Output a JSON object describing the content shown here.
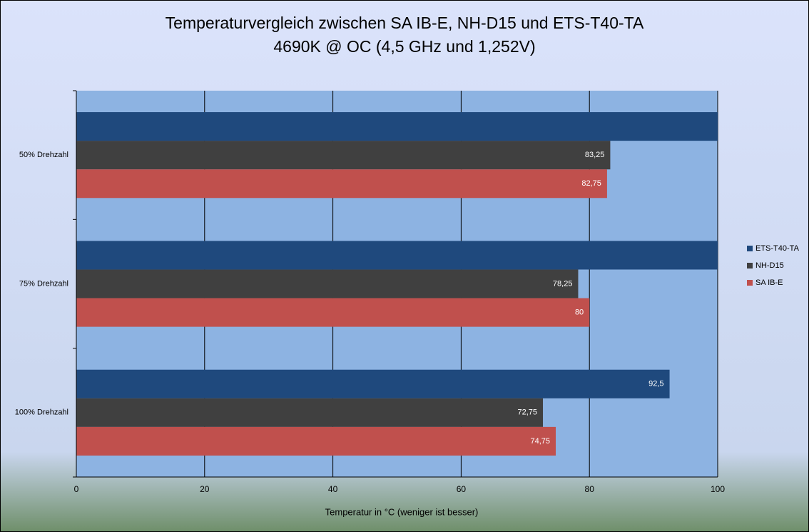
{
  "chart_data": {
    "type": "hbar",
    "title": "Temperaturvergleich zwischen SA IB-E, NH-D15 und ETS-T40-TA",
    "subtitle": "4690K @ OC (4,5 GHz und 1,252V)",
    "x_label": "Temperatur in °C (weniger ist besser)",
    "categories": [
      "50% Drehzahl",
      "75% Drehzahl",
      "100% Drehzahl"
    ],
    "series": [
      {
        "name": "ETS-T40-TA",
        "color": "#1f497d",
        "values": [
          100,
          100,
          92.5
        ],
        "value_labels": [
          null,
          null,
          "92,5"
        ]
      },
      {
        "name": "NH-D15",
        "color": "#404040",
        "values": [
          83.25,
          78.25,
          72.75
        ],
        "value_labels": [
          "83,25",
          "78,25",
          "72,75"
        ]
      },
      {
        "name": "SA IB-E",
        "color": "#c0504d",
        "values": [
          82.75,
          80,
          74.75
        ],
        "value_labels": [
          "82,75",
          "80",
          "74,75"
        ]
      }
    ],
    "xlim": [
      0,
      100
    ],
    "xticks": [
      0,
      20,
      40,
      60,
      80,
      100
    ],
    "grid": true,
    "legend": "right"
  }
}
